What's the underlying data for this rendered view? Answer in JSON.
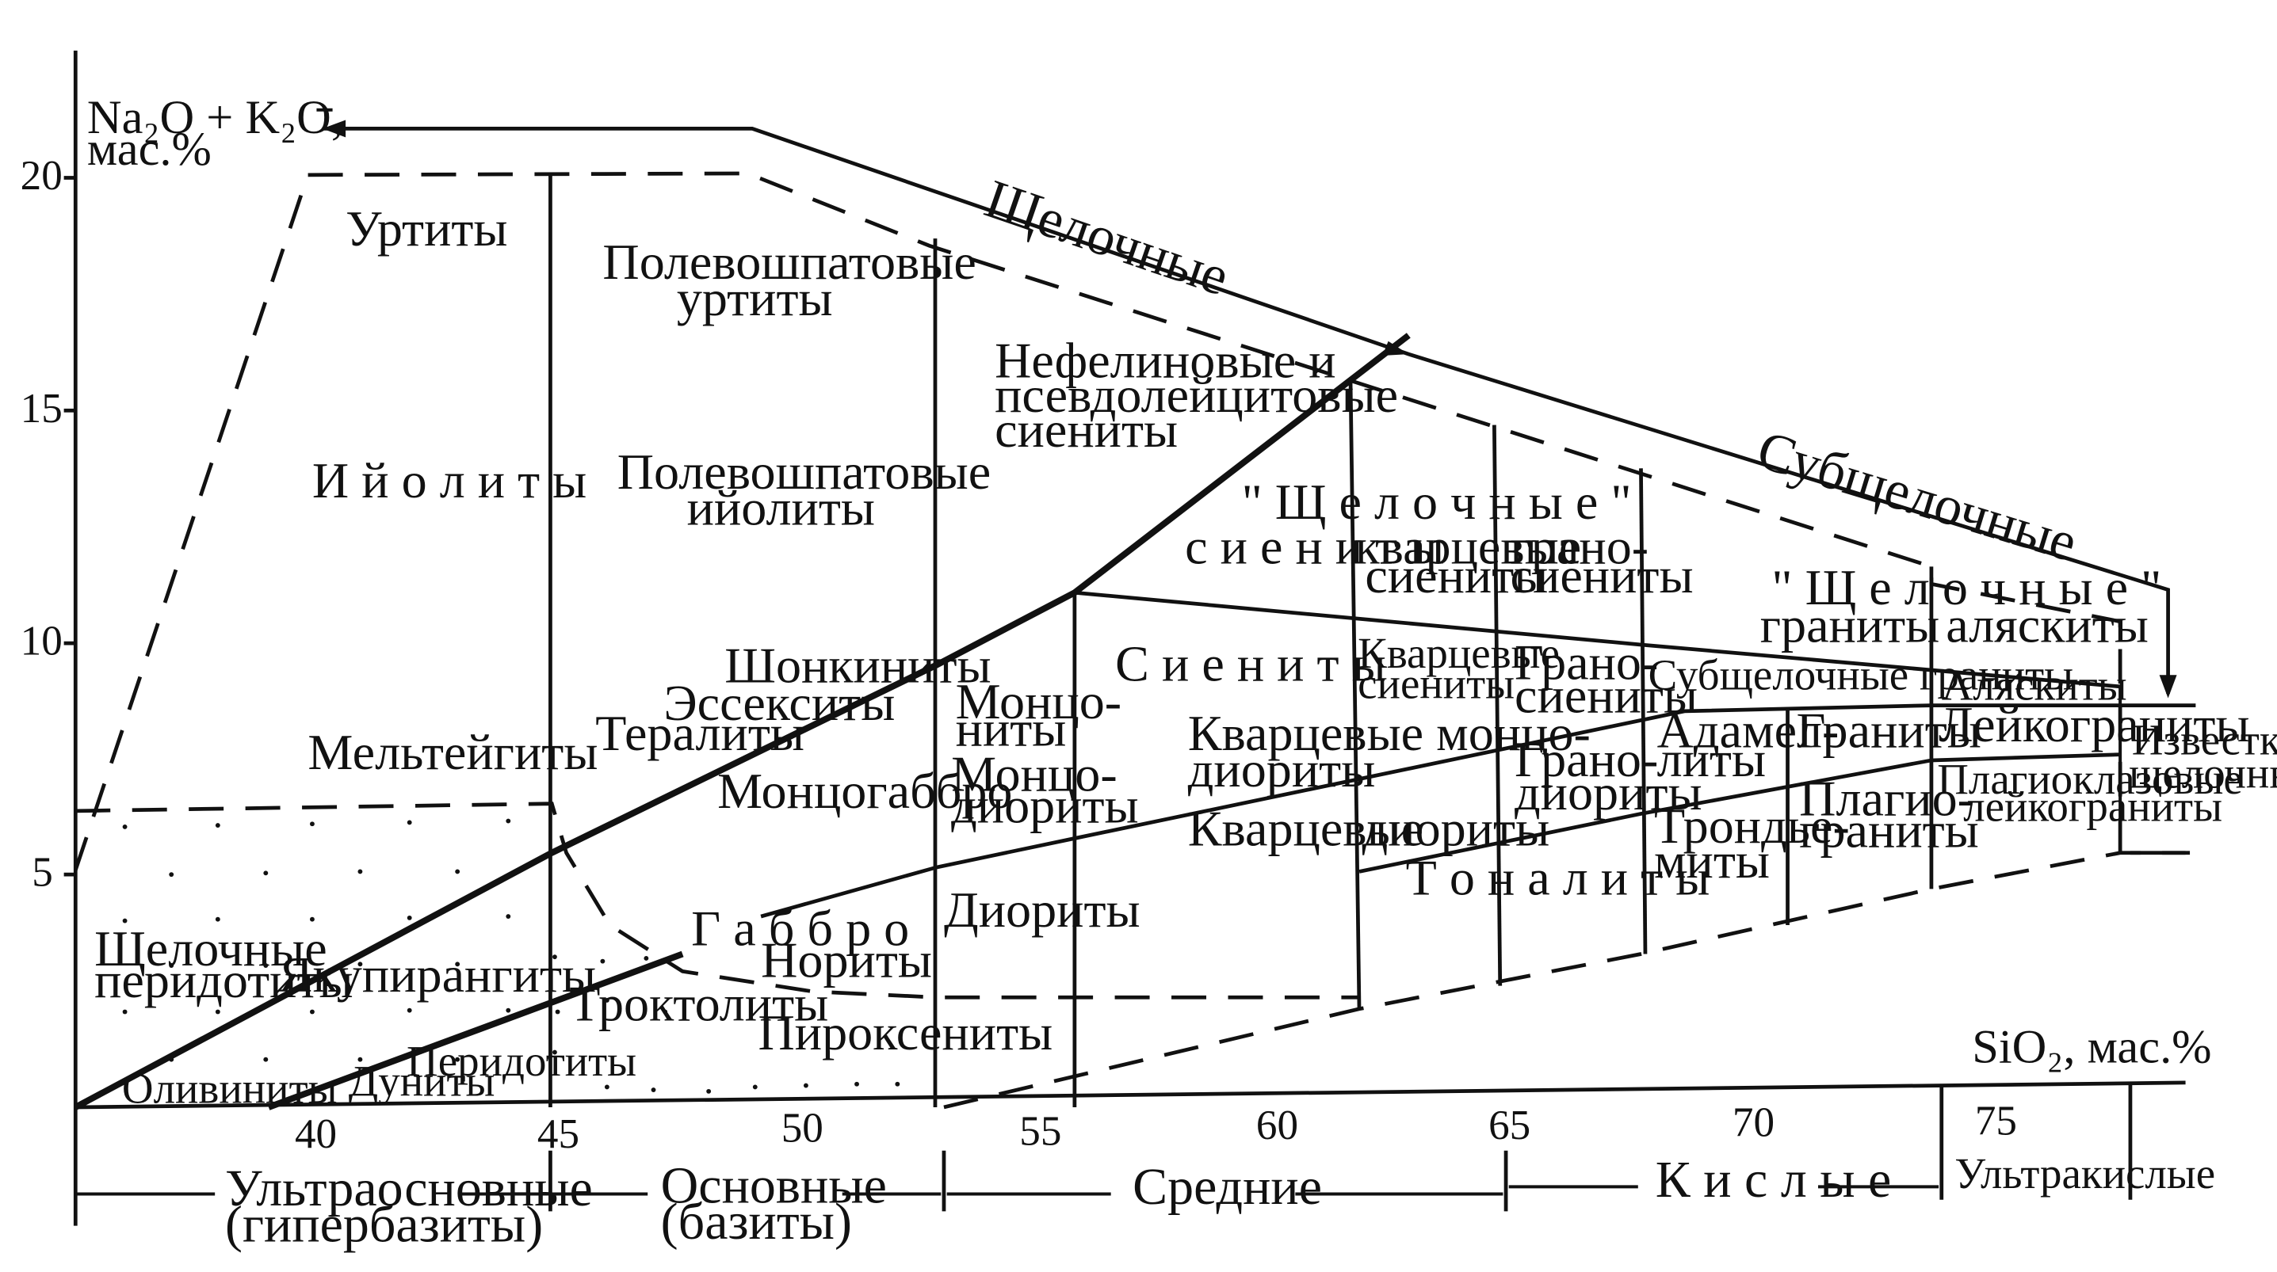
{
  "axes": {
    "y_title_line1": "Na₂O + K₂O,",
    "y_title_line2": "мас.%",
    "x_title": "SiO₂, мас.%",
    "x_ticks": [
      "40",
      "45",
      "50",
      "55",
      "60",
      "65",
      "70",
      "75"
    ],
    "y_ticks": [
      "5",
      "10",
      "15",
      "20"
    ],
    "x_range": [
      35,
      79
    ],
    "y_range": [
      0,
      22
    ]
  },
  "series_labels": {
    "alkaline": "Щелочные",
    "subalkaline": "Субщелочные",
    "calc_alkaline_1": "Известково-",
    "calc_alkaline_2": "щелочные"
  },
  "groups": {
    "ultrabasic_1": "Ультраосновные",
    "ultrabasic_2": "(гипербазиты)",
    "basic_1": "Основные",
    "basic_2": "(базиты)",
    "intermediate": "Средние",
    "acid": "К и с л ы е",
    "ultraacid": "Ультракислые"
  },
  "fields": {
    "urtity": "Уртиты",
    "ijolity": "И й о л и т ы",
    "melteigity": "Мельтейгиты",
    "alk_perid_1": "Щелочные",
    "alk_perid_2": "перидотиты",
    "olivinity": "Оливиниты",
    "yakupirangity": "Якупирангиты",
    "dunity": "Дуниты",
    "peridotity": "Перидотиты",
    "fsp_urt_1": "Полевошпатовые",
    "fsp_urt_2": "уртиты",
    "fsp_ijol_1": "Полевошпатовые",
    "fsp_ijol_2": "ийолиты",
    "shonkinity": "Шонкиниты",
    "essexity": "Эссекситы",
    "terality": "Тералиты",
    "monzogabbro": "Монцогаббро",
    "gabbro": "Г а б б р о",
    "nority": "Нориты",
    "troktolity": "Троктолиты",
    "piroksenity": "Пироксениты",
    "neph_1": "Нефелиновые и",
    "neph_2": "псевдолейцитовые",
    "neph_3": "сиениты",
    "alk_group": "\" Щ е л о ч н ы е \"",
    "alk_sienity": "с и е н и т ы",
    "alk_qsien_1": "кварцевые",
    "alk_qsien_2": "сиениты",
    "alk_granosien_1": "грано-",
    "alk_granosien_2": "сиениты",
    "alk_gran_group": "\" Щ е л о ч н ы е \"",
    "alk_granity": "граниты",
    "alyaskity_alk": "аляскиты",
    "monzonity_1": "Монцо-",
    "monzonity_2": "ниты",
    "monzodiority_1": "Монцо-",
    "monzodiority_2": "диориты",
    "diority": "Диориты",
    "sienity": "С и е н и т ы",
    "qsien_1": "Кварцевые",
    "qsien_2": "сиениты",
    "granosien_1": "Грано-",
    "granosien_2": "сиениты",
    "q_monzodior_1": "Кварцевые монцо-",
    "q_monzodior_2": "диориты",
    "q_dior_a": "Кварцевые",
    "q_dior_b": "диориты",
    "tonality": "Т о н а л и т ы",
    "granodior_1": "Грано-",
    "granodior_2": "диориты",
    "subalk_granity": "Субщелочные граниты",
    "alyaskity": "Аляскиты",
    "adamelity_1": "Адамел-",
    "adamelity_2": "литы",
    "granity": "Граниты",
    "leikogranity": "Лейкограниты",
    "trondhjem_1": "Трондье-",
    "trondhjem_2": "миты",
    "plagiogran_1": "Плагио-",
    "plagiogran_2": "граниты",
    "plag_leiko_1": "Плагиоклазовые",
    "plag_leiko_2": "лейкограниты"
  }
}
